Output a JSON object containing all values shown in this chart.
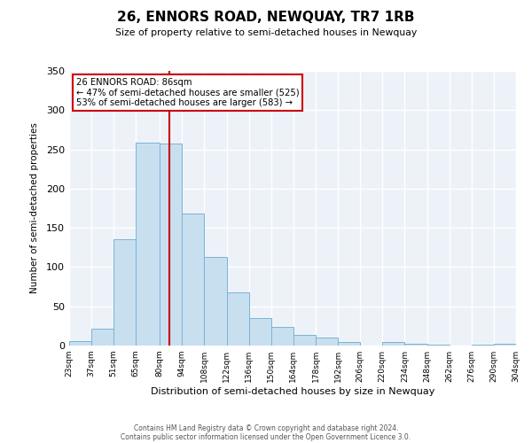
{
  "title": "26, ENNORS ROAD, NEWQUAY, TR7 1RB",
  "subtitle": "Size of property relative to semi-detached houses in Newquay",
  "xlabel": "Distribution of semi-detached houses by size in Newquay",
  "ylabel": "Number of semi-detached properties",
  "bin_edges": [
    23,
    37,
    51,
    65,
    80,
    94,
    108,
    122,
    136,
    150,
    164,
    178,
    192,
    206,
    220,
    234,
    248,
    262,
    276,
    290,
    304
  ],
  "bar_heights": [
    6,
    21,
    136,
    258,
    257,
    168,
    113,
    68,
    35,
    24,
    14,
    10,
    4,
    0,
    5,
    2,
    1,
    0,
    1,
    2
  ],
  "bar_color": "#c8dff0",
  "bar_edge_color": "#7ab3d4",
  "property_value": 86,
  "annotation_title": "26 ENNORS ROAD: 86sqm",
  "annotation_line1": "← 47% of semi-detached houses are smaller (525)",
  "annotation_line2": "53% of semi-detached houses are larger (583) →",
  "annotation_box_color": "#ffffff",
  "annotation_box_edge": "#cc0000",
  "vline_color": "#cc0000",
  "tick_labels": [
    "23sqm",
    "37sqm",
    "51sqm",
    "65sqm",
    "80sqm",
    "94sqm",
    "108sqm",
    "122sqm",
    "136sqm",
    "150sqm",
    "164sqm",
    "178sqm",
    "192sqm",
    "206sqm",
    "220sqm",
    "234sqm",
    "248sqm",
    "262sqm",
    "276sqm",
    "290sqm",
    "304sqm"
  ],
  "ylim": [
    0,
    350
  ],
  "yticks": [
    0,
    50,
    100,
    150,
    200,
    250,
    300,
    350
  ],
  "footer1": "Contains HM Land Registry data © Crown copyright and database right 2024.",
  "footer2": "Contains public sector information licensed under the Open Government Licence 3.0.",
  "background_color": "#edf2f9",
  "plot_background": "#ffffff",
  "grid_color": "#ffffff"
}
